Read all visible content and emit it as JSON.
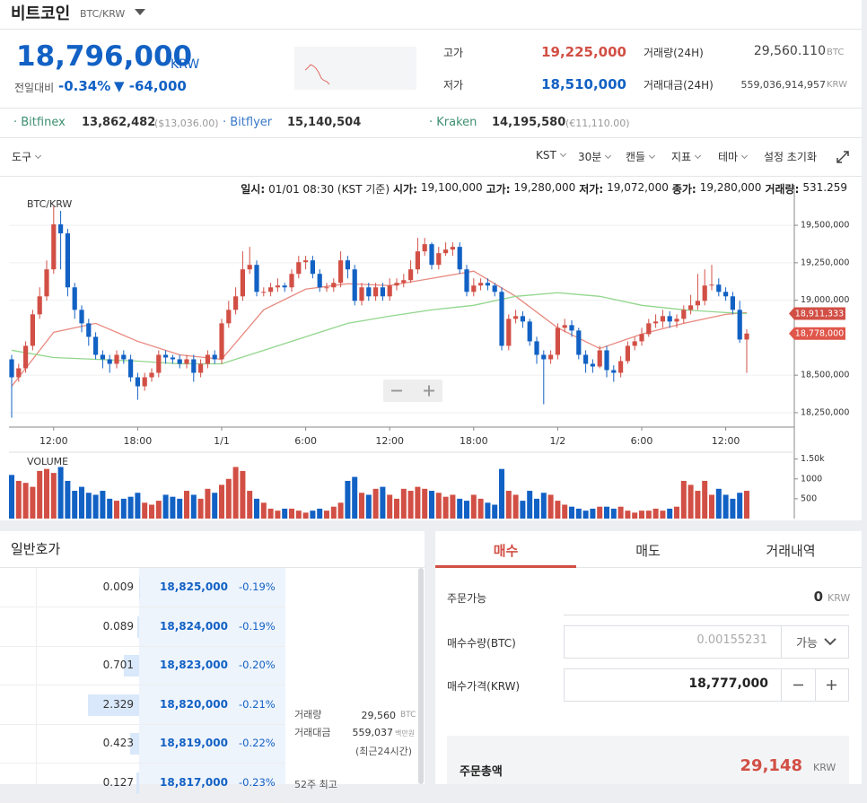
{
  "header": {
    "title": "비트코인",
    "pair": "BTC/KRW"
  },
  "ticker": {
    "price": "18,796,000",
    "currency": "KRW",
    "change_label": "전일대비",
    "change_rate": "-0.34%",
    "change_amount": "▼ -64,000",
    "high_label": "고가",
    "high": "19,225,000",
    "low_label": "저가",
    "low": "18,510,000",
    "volume_label": "거래량(24H)",
    "volume": "29,560.110",
    "volume_unit": "BTC",
    "value_label": "거래대금(24H)",
    "value": "559,036,914,957",
    "value_unit": "KRW",
    "sparkline": [
      19110000,
      19160000,
      19230000,
      19200000,
      19150000,
      19060000,
      18930000,
      18880000,
      18860000,
      18796000
    ]
  },
  "exchanges": [
    {
      "name": "Bitfinex",
      "price": "13,862,482",
      "quote": "($13,036.00)"
    },
    {
      "name": "Bitflyer",
      "price": "15,140,504"
    },
    {
      "name": "Kraken",
      "price": "14,195,580",
      "quote": "(€11,110.00)"
    }
  ],
  "toolbar": {
    "tools": "도구",
    "items": [
      "KST",
      "30분",
      "캔들",
      "지표",
      "테마"
    ],
    "reset": "설정 초기화"
  },
  "chart_data": {
    "type": "candlestick",
    "label": "BTC/KRW",
    "info": [
      {
        "label": "일시:",
        "value": "01/01 08:30 (KST 기준)"
      },
      {
        "label": "시가:",
        "value": "19,100,000"
      },
      {
        "label": "고가:",
        "value": "19,280,000"
      },
      {
        "label": "저가:",
        "value": "19,072,000"
      },
      {
        "label": "종가:",
        "value": "19,280,000"
      },
      {
        "label": "거래량:",
        "value": "531.259"
      }
    ],
    "categories": [
      null,
      null,
      null,
      null,
      null,
      null,
      "12:00",
      null,
      null,
      null,
      null,
      null,
      null,
      null,
      null,
      null,
      null,
      null,
      "18:00",
      null,
      null,
      null,
      null,
      null,
      null,
      null,
      null,
      null,
      null,
      null,
      "1/1",
      null,
      null,
      null,
      null,
      null,
      null,
      null,
      null,
      null,
      null,
      null,
      "6:00",
      null,
      null,
      null,
      null,
      null,
      null,
      null,
      null,
      null,
      null,
      null,
      "12:00",
      null,
      null,
      null,
      null,
      null,
      null,
      null,
      null,
      null,
      null,
      null,
      "18:00",
      null,
      null,
      null,
      null,
      null,
      null,
      null,
      null,
      null,
      null,
      null,
      "1/2",
      null,
      null,
      null,
      null,
      null,
      null,
      null,
      null,
      null,
      null,
      null,
      "6:00",
      null,
      null,
      null,
      null,
      null,
      null,
      null,
      null,
      null,
      null,
      null,
      "12:00",
      null,
      null,
      null
    ],
    "open": [
      18606000,
      18486000,
      18546000,
      18696000,
      18906000,
      19026000,
      19206000,
      19506000,
      19446000,
      19086000,
      18936000,
      18846000,
      18756000,
      18636000,
      18606000,
      18576000,
      18636000,
      18606000,
      18486000,
      18426000,
      18486000,
      18516000,
      18636000,
      18618000,
      18606000,
      18576000,
      18606000,
      18516000,
      18576000,
      18636000,
      18606000,
      18846000,
      18936000,
      19026000,
      19206000,
      19236000,
      19056000,
      19056000,
      19086000,
      19098000,
      19086000,
      19176000,
      19254000,
      19266000,
      19176000,
      19086000,
      19086000,
      19116000,
      19266000,
      19206000,
      18996000,
      19086000,
      19026000,
      19086000,
      19026000,
      19098000,
      19116000,
      19134000,
      19206000,
      19326000,
      19374000,
      19236000,
      19314000,
      19338000,
      19356000,
      19206000,
      19056000,
      19098000,
      19116000,
      19098000,
      19056000,
      18696000,
      18876000,
      18894000,
      18858000,
      18726000,
      18636000,
      18606000,
      18636000,
      18816000,
      18834000,
      18798000,
      18636000,
      18576000,
      18558000,
      18666000,
      18534000,
      18516000,
      18594000,
      18696000,
      18726000,
      18774000,
      18846000,
      18858000,
      18894000,
      18858000,
      18876000,
      18936000,
      18966000,
      18996000,
      19098000,
      19104000,
      19056000,
      19026000,
      18936000,
      18738000
    ],
    "high": [
      18636000,
      18576000,
      18726000,
      18936000,
      19086000,
      19266000,
      19626000,
      19596000,
      19476000,
      19116000,
      18966000,
      18876000,
      18786000,
      18666000,
      18636000,
      18666000,
      18666000,
      18636000,
      18516000,
      18516000,
      18546000,
      18666000,
      18666000,
      18636000,
      18636000,
      18636000,
      18636000,
      18606000,
      18666000,
      18666000,
      18876000,
      18996000,
      19086000,
      19326000,
      19356000,
      19266000,
      19086000,
      19116000,
      19146000,
      19116000,
      19206000,
      19296000,
      19296000,
      19296000,
      19206000,
      19116000,
      19146000,
      19326000,
      19296000,
      19236000,
      19116000,
      19116000,
      19116000,
      19116000,
      19146000,
      19146000,
      19176000,
      19266000,
      19416000,
      19416000,
      19386000,
      19356000,
      19386000,
      19386000,
      19386000,
      19236000,
      19146000,
      19146000,
      19146000,
      19116000,
      19086000,
      18906000,
      18936000,
      18926000,
      18876000,
      18756000,
      18666000,
      18666000,
      18846000,
      18876000,
      18866000,
      18816000,
      18666000,
      18606000,
      18696000,
      18696000,
      18566000,
      18626000,
      18726000,
      18756000,
      18816000,
      18876000,
      18906000,
      18936000,
      18926000,
      18906000,
      18966000,
      19036000,
      19176000,
      19206000,
      19236000,
      19146000,
      19086000,
      19056000,
      18996000,
      18806000
    ],
    "low": [
      18216000,
      18456000,
      18516000,
      18666000,
      18876000,
      18996000,
      19176000,
      19206000,
      19026000,
      18876000,
      18786000,
      18696000,
      18606000,
      18546000,
      18516000,
      18546000,
      18576000,
      18456000,
      18336000,
      18396000,
      18456000,
      18486000,
      18576000,
      18576000,
      18546000,
      18546000,
      18456000,
      18486000,
      18546000,
      18576000,
      18576000,
      18816000,
      18906000,
      18996000,
      19176000,
      19026000,
      19026000,
      19026000,
      19056000,
      19056000,
      19056000,
      19146000,
      19206000,
      19146000,
      19056000,
      19056000,
      19056000,
      19086000,
      19146000,
      18966000,
      18966000,
      18996000,
      18996000,
      18996000,
      18996000,
      19066000,
      19086000,
      19116000,
      19176000,
      19296000,
      19206000,
      19206000,
      19296000,
      19296000,
      19176000,
      19026000,
      19026000,
      19066000,
      19066000,
      19026000,
      18666000,
      18666000,
      18846000,
      18816000,
      18696000,
      18576000,
      18306000,
      18576000,
      18606000,
      18786000,
      18756000,
      18606000,
      18516000,
      18516000,
      18546000,
      18486000,
      18456000,
      18486000,
      18576000,
      18666000,
      18696000,
      18756000,
      18816000,
      18816000,
      18816000,
      18816000,
      18846000,
      18906000,
      18936000,
      18966000,
      19066000,
      19026000,
      18996000,
      18906000,
      18716000,
      18516000
    ],
    "close": [
      18486000,
      18546000,
      18696000,
      18906000,
      19026000,
      19206000,
      19506000,
      19446000,
      19086000,
      18936000,
      18846000,
      18756000,
      18636000,
      18606000,
      18576000,
      18636000,
      18606000,
      18486000,
      18426000,
      18486000,
      18516000,
      18636000,
      18618000,
      18606000,
      18576000,
      18606000,
      18516000,
      18576000,
      18636000,
      18606000,
      18846000,
      18936000,
      19026000,
      19206000,
      19236000,
      19056000,
      19056000,
      19086000,
      19098000,
      19086000,
      19176000,
      19254000,
      19266000,
      19176000,
      19086000,
      19086000,
      19116000,
      19266000,
      19206000,
      18996000,
      19086000,
      19026000,
      19086000,
      19026000,
      19098000,
      19116000,
      19134000,
      19206000,
      19326000,
      19374000,
      19236000,
      19314000,
      19338000,
      19356000,
      19206000,
      19056000,
      19098000,
      19116000,
      19098000,
      19056000,
      18696000,
      18876000,
      18894000,
      18858000,
      18726000,
      18636000,
      18606000,
      18636000,
      18816000,
      18834000,
      18798000,
      18636000,
      18576000,
      18558000,
      18666000,
      18534000,
      18516000,
      18594000,
      18696000,
      18726000,
      18774000,
      18846000,
      18858000,
      18894000,
      18858000,
      18876000,
      18936000,
      18966000,
      18996000,
      19098000,
      19104000,
      19056000,
      19026000,
      18936000,
      18738000,
      18778000
    ],
    "up_color": "#d24f45",
    "down_color": "#1261c4",
    "ma": [
      {
        "color": "#e88a80",
        "x": [
          0,
          6,
          12,
          18,
          24,
          30,
          36,
          42,
          48,
          54,
          60,
          66,
          72,
          78,
          84,
          90,
          96,
          102,
          105
        ],
        "values": [
          18426000,
          18786000,
          18846000,
          18726000,
          18636000,
          18606000,
          18936000,
          19074000,
          19110000,
          19098000,
          19146000,
          19194000,
          19026000,
          18816000,
          18678000,
          18774000,
          18846000,
          18906000,
          18918000
        ]
      },
      {
        "color": "#92d68c",
        "x": [
          0,
          6,
          12,
          18,
          24,
          30,
          36,
          42,
          48,
          54,
          60,
          66,
          72,
          78,
          84,
          90,
          96,
          102,
          105
        ],
        "values": [
          18666000,
          18618000,
          18606000,
          18594000,
          18576000,
          18576000,
          18666000,
          18756000,
          18846000,
          18894000,
          18936000,
          18966000,
          19026000,
          19050000,
          19026000,
          18966000,
          18936000,
          18918000,
          18912000
        ]
      }
    ],
    "price_tags": [
      {
        "value": 18911333,
        "label": "18,911,333",
        "color": "#d24f45"
      },
      {
        "value": 18778000,
        "label": "18,778,000",
        "color": "#e0564a"
      }
    ],
    "ylim": [
      18154000,
      19716000
    ],
    "yticks": [
      {
        "value": 19500000,
        "label": "19,500,000"
      },
      {
        "value": 19250000,
        "label": "19,250,000"
      },
      {
        "value": 19000000,
        "label": "19,000,000"
      },
      {
        "value": 18500000,
        "label": "18,500,000"
      },
      {
        "value": 18250000,
        "label": "18,250,000"
      }
    ],
    "grid": true,
    "volume": {
      "label": "VOLUME",
      "ylim": [
        0,
        1650
      ],
      "yticks": [
        500,
        1000,
        {
          "value": 1500,
          "label": "1.50k"
        }
      ],
      "values": [
        1100,
        950,
        900,
        800,
        1200,
        1250,
        1150,
        1300,
        950,
        700,
        800,
        650,
        600,
        700,
        500,
        450,
        500,
        550,
        650,
        400,
        350,
        450,
        600,
        550,
        500,
        700,
        600,
        500,
        750,
        650,
        850,
        1000,
        1300,
        1200,
        700,
        500,
        400,
        250,
        200,
        250,
        250,
        200,
        150,
        200,
        250,
        200,
        300,
        400,
        950,
        1050,
        650,
        600,
        750,
        800,
        600,
        500,
        750,
        700,
        800,
        750,
        700,
        650,
        550,
        600,
        500,
        450,
        600,
        500,
        400,
        350,
        1250,
        700,
        600,
        450,
        700,
        500,
        650,
        600,
        450,
        350,
        300,
        250,
        200,
        250,
        300,
        300,
        250,
        300,
        200,
        150,
        200,
        200,
        250,
        200,
        250,
        300,
        950,
        850,
        700,
        950,
        600,
        750,
        600,
        500,
        650,
        700
      ]
    }
  },
  "orderbook": {
    "title": "일반호가",
    "rows": [
      {
        "qty": 0.009,
        "price": "18,825,000",
        "rate": "-0.19%"
      },
      {
        "qty": 0.089,
        "price": "18,824,000",
        "rate": "-0.19%"
      },
      {
        "qty": 0.701,
        "price": "18,823,000",
        "rate": "-0.20%"
      },
      {
        "qty": 2.329,
        "price": "18,820,000",
        "rate": "-0.21%"
      },
      {
        "qty": 0.423,
        "price": "18,819,000",
        "rate": "-0.22%"
      },
      {
        "qty": 0.127,
        "price": "18,817,000",
        "rate": "-0.23%"
      }
    ],
    "stats": {
      "volume_label": "거래량",
      "volume": "29,560",
      "volume_unit": "BTC",
      "value_label": "거래대금",
      "value": "559,037",
      "value_unit": "백만원",
      "period": "(최근24시간)",
      "high52_label": "52주 최고"
    }
  },
  "order": {
    "tabs": [
      "매수",
      "매도",
      "거래내역"
    ],
    "available_label": "주문가능",
    "available": "0",
    "available_unit": "KRW",
    "qty_label": "매수수량(BTC)",
    "qty_placeholder": "0.00155231",
    "qty_option": "가능",
    "price_label": "매수가격(KRW)",
    "price": "18,777,000",
    "total_label": "주문총액",
    "total": "29,148",
    "total_unit": "KRW"
  }
}
